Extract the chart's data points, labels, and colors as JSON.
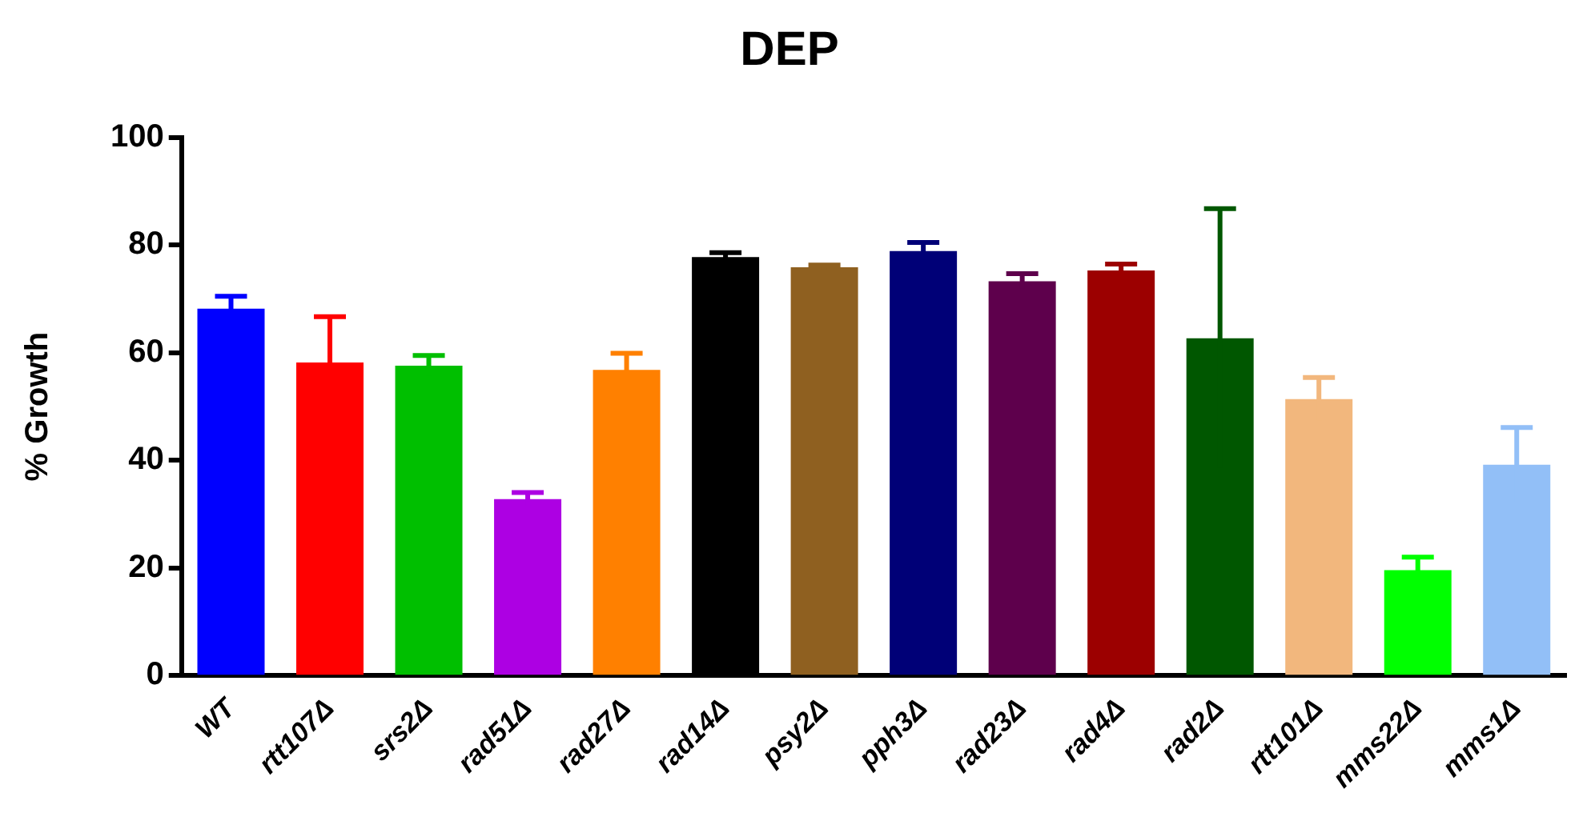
{
  "chart_data": {
    "type": "bar",
    "title": "DEP",
    "ylabel": "% Growth",
    "categories": [
      "WT",
      "rtt107Δ",
      "srs2Δ",
      "rad51Δ",
      "rad27Δ",
      "rad14Δ",
      "psy2Δ",
      "pph3Δ",
      "rad23Δ",
      "rad4Δ",
      "rad2Δ",
      "rtt101Δ",
      "mms22Δ",
      "mms1Δ"
    ],
    "values": [
      68.2,
      58.2,
      57.6,
      32.8,
      56.8,
      77.8,
      75.9,
      78.9,
      73.3,
      75.3,
      62.7,
      51.4,
      19.6,
      39.2
    ],
    "errors": [
      2.3,
      8.5,
      1.9,
      1.2,
      3.1,
      0.8,
      0.4,
      1.6,
      1.4,
      1.2,
      24.1,
      4.0,
      2.4,
      6.9
    ],
    "colors": [
      "#0000ff",
      "#ff0000",
      "#00bf00",
      "#ad00e3",
      "#ff8000",
      "#000000",
      "#8f6020",
      "#000077",
      "#5e004c",
      "#9c0000",
      "#005700",
      "#f2b77d",
      "#00ff00",
      "#92bff7"
    ],
    "ylim": [
      0,
      100
    ],
    "yticks": [
      0,
      20,
      40,
      60,
      80,
      100
    ],
    "grid": false,
    "legend": false
  }
}
